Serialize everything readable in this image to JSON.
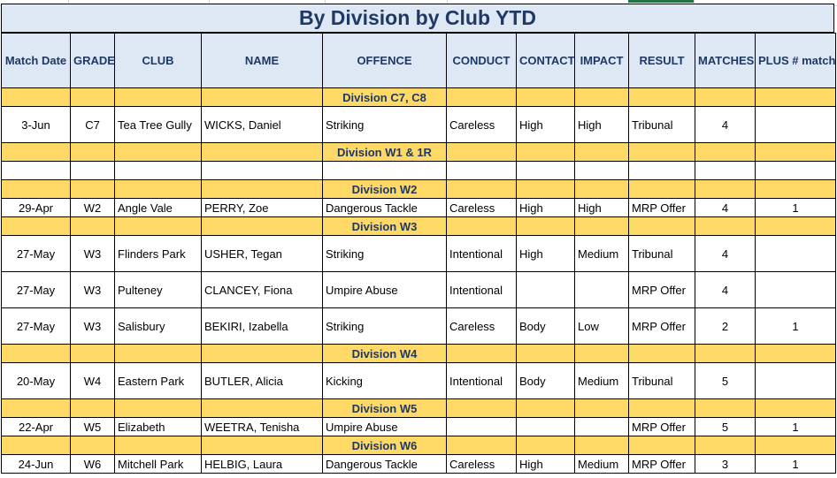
{
  "title": "By Division by Club YTD",
  "headers": [
    "Match Date",
    "GRADE",
    "CLUB",
    "NAME",
    "OFFENCE",
    "CONDUCT",
    "CONTACT",
    "IMPACT",
    "RESULT",
    "MATCHES",
    "PLUS # matches suspended"
  ],
  "divisions": [
    {
      "label": "Division C7, C8",
      "rows": [
        {
          "date": "3-Jun",
          "grade": "C7",
          "club": "Tea Tree Gully",
          "name": "WICKS, Daniel",
          "offence": "Striking",
          "conduct": "Careless",
          "contact": "High",
          "impact": "High",
          "result": "Tribunal",
          "matches": "4",
          "plus": ""
        }
      ]
    },
    {
      "label": "Division W1 & 1R",
      "rows": []
    },
    {
      "label": "Division W2",
      "rows": [
        {
          "date": "29-Apr",
          "grade": "W2",
          "club": "Angle Vale",
          "name": "PERRY, Zoe",
          "offence": "Dangerous Tackle",
          "conduct": "Careless",
          "contact": "High",
          "impact": "High",
          "result": "MRP Offer",
          "matches": "4",
          "plus": "1"
        }
      ]
    },
    {
      "label": "Division W3",
      "rows": [
        {
          "date": "27-May",
          "grade": "W3",
          "club": "Flinders Park",
          "name": "USHER, Tegan",
          "offence": "Striking",
          "conduct": "Intentional",
          "contact": "High",
          "impact": "Medium",
          "result": "Tribunal",
          "matches": "4",
          "plus": ""
        },
        {
          "date": "27-May",
          "grade": "W3",
          "club": "Pulteney",
          "name": "CLANCEY, Fiona",
          "offence": "Umpire Abuse",
          "conduct": "Intentional",
          "contact": "",
          "impact": "",
          "result": "MRP Offer",
          "matches": "4",
          "plus": ""
        },
        {
          "date": "27-May",
          "grade": "W3",
          "club": "Salisbury",
          "name": "BEKIRI, Izabella",
          "offence": "Striking",
          "conduct": "Careless",
          "contact": "Body",
          "impact": "Low",
          "result": "MRP Offer",
          "matches": "2",
          "plus": "1"
        }
      ]
    },
    {
      "label": "Division W4",
      "rows": [
        {
          "date": "20-May",
          "grade": "W4",
          "club": "Eastern Park",
          "name": "BUTLER, Alicia",
          "offence": "Kicking",
          "conduct": "Intentional",
          "contact": "Body",
          "impact": "Medium",
          "result": "Tribunal",
          "matches": "5",
          "plus": ""
        }
      ]
    },
    {
      "label": "Division W5",
      "rows": [
        {
          "date": "22-Apr",
          "grade": "W5",
          "club": "Elizabeth",
          "name": "WEETRA, Tenisha",
          "offence": "Umpire Abuse",
          "conduct": "",
          "contact": "",
          "impact": "",
          "result": "MRP Offer",
          "matches": "5",
          "plus": "1"
        }
      ]
    },
    {
      "label": "Division W6",
      "rows": [
        {
          "date": "24-Jun",
          "grade": "W6",
          "club": "Mitchell Park",
          "name": "HELBIG, Laura",
          "offence": "Dangerous Tackle",
          "conduct": "Careless",
          "contact": "High",
          "impact": "Medium",
          "result": "MRP Offer",
          "matches": "3",
          "plus": "1"
        }
      ]
    }
  ]
}
